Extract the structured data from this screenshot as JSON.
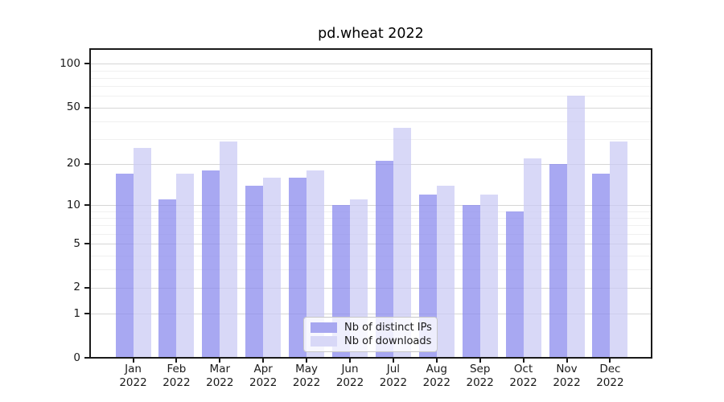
{
  "chart_data": {
    "type": "bar",
    "title": "pd.wheat 2022",
    "categories": [
      "Jan 2022",
      "Feb 2022",
      "Mar 2022",
      "Apr 2022",
      "May 2022",
      "Jun 2022",
      "Jul 2022",
      "Aug 2022",
      "Sep 2022",
      "Oct 2022",
      "Nov 2022",
      "Dec 2022"
    ],
    "series": [
      {
        "name": "Nb of distinct IPs",
        "color": "#a9a9f1",
        "fill": "rgba(134,134,237,0.72)",
        "legend_color": "#a7a7f0",
        "values": [
          17,
          11,
          18,
          14,
          16,
          10,
          21,
          12,
          10,
          9,
          20,
          17
        ]
      },
      {
        "name": "Nb of downloads",
        "color": "#d8d8f7",
        "fill": "rgba(201,201,244,0.72)",
        "legend_color": "#d8d8f7",
        "values": [
          26,
          17,
          29,
          16,
          18,
          11,
          36,
          14,
          12,
          22,
          60,
          29
        ]
      }
    ],
    "yscale": "log1p",
    "ylim": [
      0,
      125
    ],
    "ytick_values": [
      0,
      1,
      2,
      5,
      10,
      20,
      50,
      100
    ],
    "ytick_labels": [
      "0",
      "1",
      "2",
      "5",
      "10",
      "20",
      "50",
      "100"
    ],
    "minor_grid_values": [
      3,
      4,
      6,
      7,
      8,
      9,
      30,
      40,
      60,
      70,
      80,
      90
    ],
    "grid": true,
    "legend_position": "lower center",
    "xlabel": "",
    "ylabel": ""
  }
}
